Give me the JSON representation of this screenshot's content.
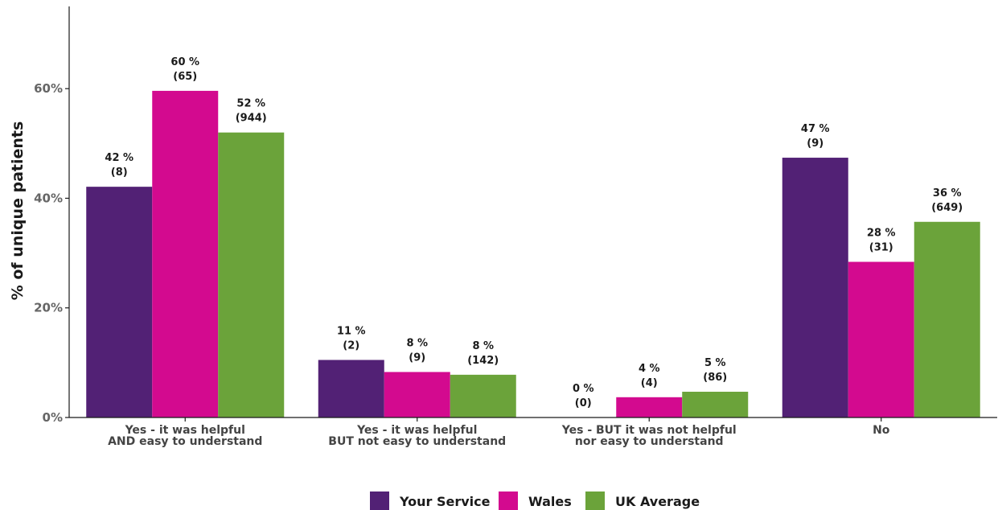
{
  "chart_data": {
    "type": "bar",
    "ylabel": "% of unique patients",
    "ylim": [
      0,
      75
    ],
    "yticks": [
      0,
      20,
      40,
      60
    ],
    "ytick_labels": [
      "0%",
      "20%",
      "40%",
      "60%"
    ],
    "grid": false,
    "legend_position": "bottom-center",
    "categories": [
      [
        "Yes - it was helpful",
        "AND easy to understand"
      ],
      [
        "Yes - it was helpful",
        "BUT not easy to understand"
      ],
      [
        "Yes - BUT it was not helpful",
        "nor easy to understand"
      ],
      [
        "No"
      ]
    ],
    "series": [
      {
        "name": "Your Service",
        "color": "#522175",
        "values": [
          42.1,
          10.5,
          0,
          47.4
        ],
        "labels": [
          [
            "42 %",
            "(8)"
          ],
          [
            "11 %",
            "(2)"
          ],
          [
            "0 %",
            "(0)"
          ],
          [
            "47 %",
            "(9)"
          ]
        ]
      },
      {
        "name": "Wales",
        "color": "#D30A8F",
        "values": [
          59.6,
          8.3,
          3.7,
          28.4
        ],
        "labels": [
          [
            "60 %",
            "(65)"
          ],
          [
            "8 %",
            "(9)"
          ],
          [
            "4 %",
            "(4)"
          ],
          [
            "28 %",
            "(31)"
          ]
        ]
      },
      {
        "name": "UK Average",
        "color": "#6BA33A",
        "values": [
          52.0,
          7.8,
          4.7,
          35.7
        ],
        "labels": [
          [
            "52 %",
            "(944)"
          ],
          [
            "8 %",
            "(142)"
          ],
          [
            "5 %",
            "(86)"
          ],
          [
            "36 %",
            "(649)"
          ]
        ]
      }
    ]
  }
}
